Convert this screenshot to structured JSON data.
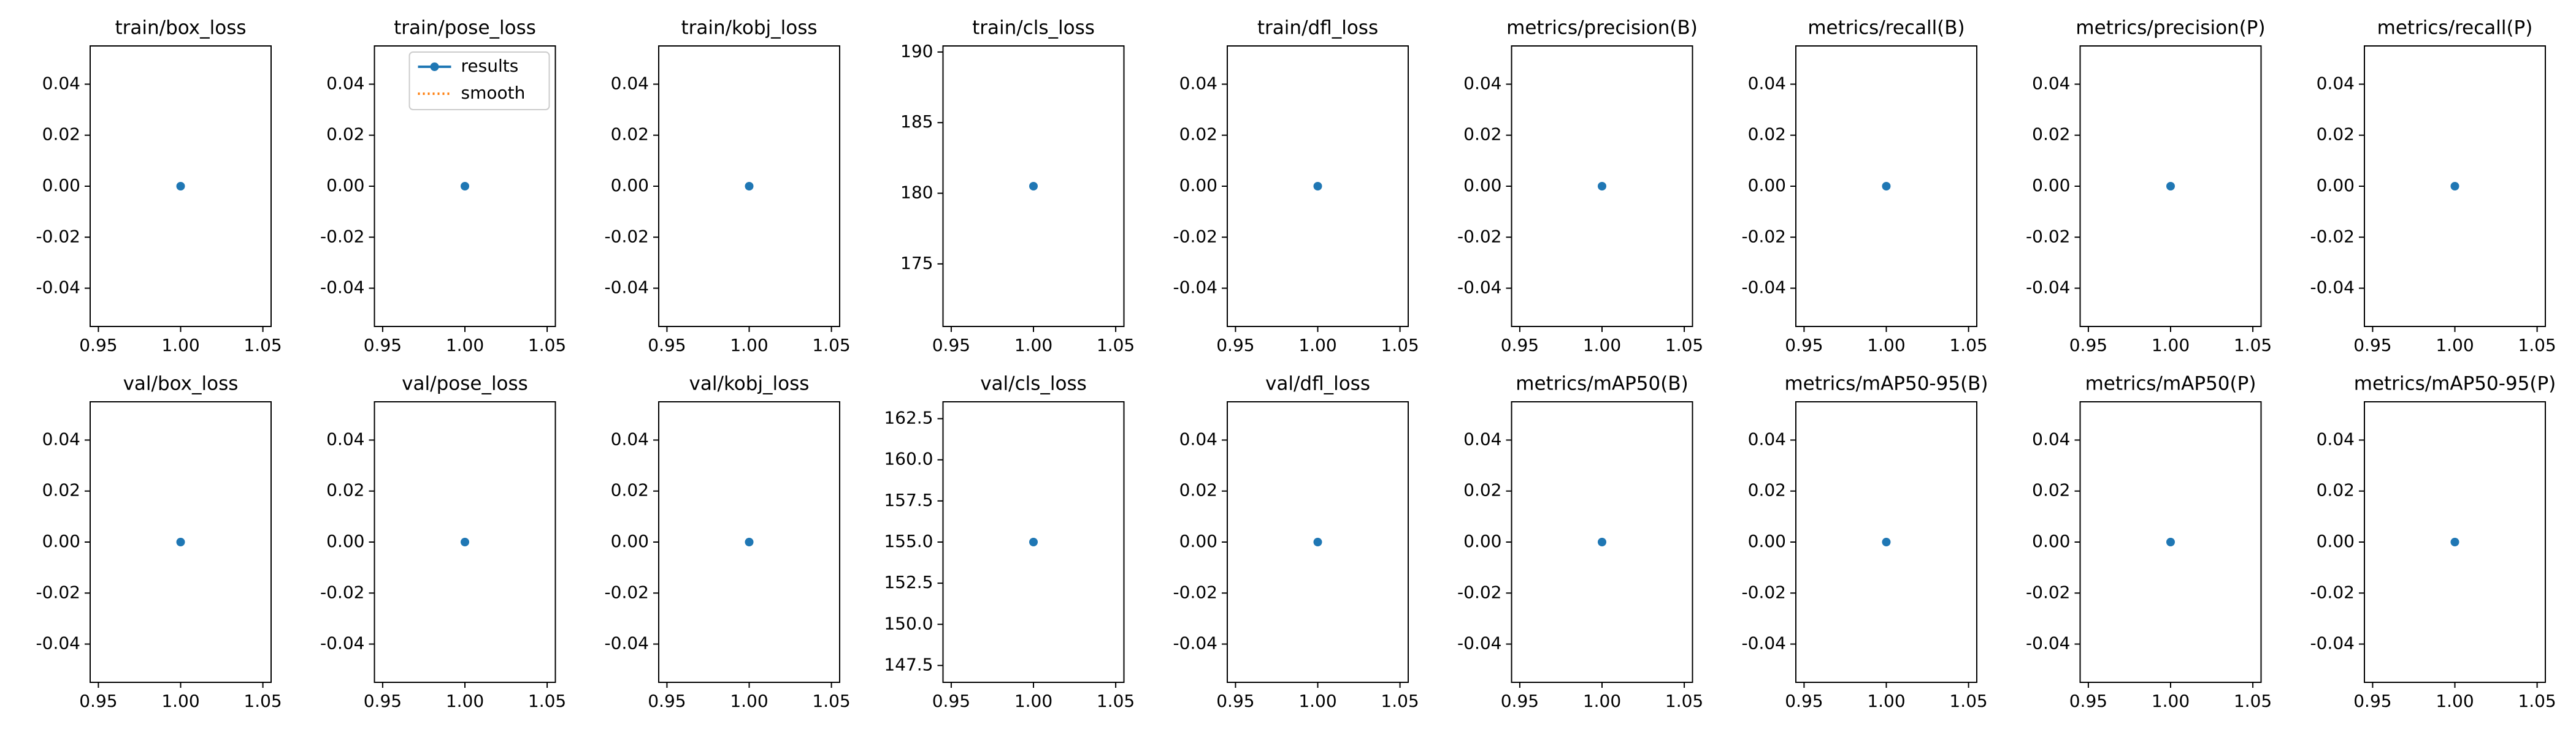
{
  "chart_data": [
    {
      "type": "line",
      "title": "train/box_loss",
      "x": [
        1
      ],
      "series": [
        {
          "name": "results",
          "color": "#1f77b4",
          "values": [
            0
          ]
        }
      ],
      "xlim": [
        0.945,
        1.055
      ],
      "xticks": [
        {
          "value": 0.95,
          "label": "0.95"
        },
        {
          "value": 1,
          "label": "1.00"
        },
        {
          "value": 1.05,
          "label": "1.05"
        }
      ],
      "ylim": [
        -0.055,
        0.055
      ],
      "yticks": [
        -0.04,
        -0.02,
        {
          "value": 0,
          "label": "0.00"
        },
        0.02,
        0.04
      ]
    },
    {
      "type": "line",
      "title": "train/pose_loss",
      "x": [
        1
      ],
      "series": [
        {
          "name": "results",
          "color": "#1f77b4",
          "values": [
            0
          ]
        },
        {
          "name": "smooth",
          "color": "#ff7f0e",
          "values": [
            null
          ]
        }
      ],
      "legend": "upper right",
      "xlim": [
        0.945,
        1.055
      ],
      "xticks": [
        {
          "value": 0.95,
          "label": "0.95"
        },
        {
          "value": 1,
          "label": "1.00"
        },
        {
          "value": 1.05,
          "label": "1.05"
        }
      ],
      "ylim": [
        -0.055,
        0.055
      ],
      "yticks": [
        -0.04,
        -0.02,
        {
          "value": 0,
          "label": "0.00"
        },
        0.02,
        0.04
      ]
    },
    {
      "type": "line",
      "title": "train/kobj_loss",
      "x": [
        1
      ],
      "series": [
        {
          "name": "results",
          "color": "#1f77b4",
          "values": [
            0
          ]
        }
      ],
      "xlim": [
        0.945,
        1.055
      ],
      "xticks": [
        {
          "value": 0.95,
          "label": "0.95"
        },
        {
          "value": 1,
          "label": "1.00"
        },
        {
          "value": 1.05,
          "label": "1.05"
        }
      ],
      "ylim": [
        -0.055,
        0.055
      ],
      "yticks": [
        -0.04,
        -0.02,
        {
          "value": 0,
          "label": "0.00"
        },
        0.02,
        0.04
      ]
    },
    {
      "type": "line",
      "title": "train/cls_loss",
      "x": [
        1
      ],
      "series": [
        {
          "name": "results",
          "color": "#1f77b4",
          "values": [
            180.5
          ]
        }
      ],
      "xlim": [
        0.945,
        1.055
      ],
      "xticks": [
        {
          "value": 0.95,
          "label": "0.95"
        },
        {
          "value": 1,
          "label": "1.00"
        },
        {
          "value": 1.05,
          "label": "1.05"
        }
      ],
      "ylim": [
        170.57,
        190.43
      ],
      "yticks": [
        175,
        180,
        185,
        190
      ]
    },
    {
      "type": "line",
      "title": "train/dfl_loss",
      "x": [
        1
      ],
      "series": [
        {
          "name": "results",
          "color": "#1f77b4",
          "values": [
            0
          ]
        }
      ],
      "xlim": [
        0.945,
        1.055
      ],
      "xticks": [
        {
          "value": 0.95,
          "label": "0.95"
        },
        {
          "value": 1,
          "label": "1.00"
        },
        {
          "value": 1.05,
          "label": "1.05"
        }
      ],
      "ylim": [
        -0.055,
        0.055
      ],
      "yticks": [
        -0.04,
        -0.02,
        {
          "value": 0,
          "label": "0.00"
        },
        0.02,
        0.04
      ]
    },
    {
      "type": "line",
      "title": "metrics/precision(B)",
      "x": [
        1
      ],
      "series": [
        {
          "name": "results",
          "color": "#1f77b4",
          "values": [
            0
          ]
        }
      ],
      "xlim": [
        0.945,
        1.055
      ],
      "xticks": [
        {
          "value": 0.95,
          "label": "0.95"
        },
        {
          "value": 1,
          "label": "1.00"
        },
        {
          "value": 1.05,
          "label": "1.05"
        }
      ],
      "ylim": [
        -0.055,
        0.055
      ],
      "yticks": [
        -0.04,
        -0.02,
        {
          "value": 0,
          "label": "0.00"
        },
        0.02,
        0.04
      ]
    },
    {
      "type": "line",
      "title": "metrics/recall(B)",
      "x": [
        1
      ],
      "series": [
        {
          "name": "results",
          "color": "#1f77b4",
          "values": [
            0
          ]
        }
      ],
      "xlim": [
        0.945,
        1.055
      ],
      "xticks": [
        {
          "value": 0.95,
          "label": "0.95"
        },
        {
          "value": 1,
          "label": "1.00"
        },
        {
          "value": 1.05,
          "label": "1.05"
        }
      ],
      "ylim": [
        -0.055,
        0.055
      ],
      "yticks": [
        -0.04,
        -0.02,
        {
          "value": 0,
          "label": "0.00"
        },
        0.02,
        0.04
      ]
    },
    {
      "type": "line",
      "title": "metrics/precision(P)",
      "x": [
        1
      ],
      "series": [
        {
          "name": "results",
          "color": "#1f77b4",
          "values": [
            0
          ]
        }
      ],
      "xlim": [
        0.945,
        1.055
      ],
      "xticks": [
        {
          "value": 0.95,
          "label": "0.95"
        },
        {
          "value": 1,
          "label": "1.00"
        },
        {
          "value": 1.05,
          "label": "1.05"
        }
      ],
      "ylim": [
        -0.055,
        0.055
      ],
      "yticks": [
        -0.04,
        -0.02,
        {
          "value": 0,
          "label": "0.00"
        },
        0.02,
        0.04
      ]
    },
    {
      "type": "line",
      "title": "metrics/recall(P)",
      "x": [
        1
      ],
      "series": [
        {
          "name": "results",
          "color": "#1f77b4",
          "values": [
            0
          ]
        }
      ],
      "xlim": [
        0.945,
        1.055
      ],
      "xticks": [
        {
          "value": 0.95,
          "label": "0.95"
        },
        {
          "value": 1,
          "label": "1.00"
        },
        {
          "value": 1.05,
          "label": "1.05"
        }
      ],
      "ylim": [
        -0.055,
        0.055
      ],
      "yticks": [
        -0.04,
        -0.02,
        {
          "value": 0,
          "label": "0.00"
        },
        0.02,
        0.04
      ]
    },
    {
      "type": "line",
      "title": "val/box_loss",
      "x": [
        1
      ],
      "series": [
        {
          "name": "results",
          "color": "#1f77b4",
          "values": [
            0
          ]
        }
      ],
      "xlim": [
        0.945,
        1.055
      ],
      "xticks": [
        {
          "value": 0.95,
          "label": "0.95"
        },
        {
          "value": 1,
          "label": "1.00"
        },
        {
          "value": 1.05,
          "label": "1.05"
        }
      ],
      "ylim": [
        -0.055,
        0.055
      ],
      "yticks": [
        -0.04,
        -0.02,
        {
          "value": 0,
          "label": "0.00"
        },
        0.02,
        0.04
      ]
    },
    {
      "type": "line",
      "title": "val/pose_loss",
      "x": [
        1
      ],
      "series": [
        {
          "name": "results",
          "color": "#1f77b4",
          "values": [
            0
          ]
        }
      ],
      "xlim": [
        0.945,
        1.055
      ],
      "xticks": [
        {
          "value": 0.95,
          "label": "0.95"
        },
        {
          "value": 1,
          "label": "1.00"
        },
        {
          "value": 1.05,
          "label": "1.05"
        }
      ],
      "ylim": [
        -0.055,
        0.055
      ],
      "yticks": [
        -0.04,
        -0.02,
        {
          "value": 0,
          "label": "0.00"
        },
        0.02,
        0.04
      ]
    },
    {
      "type": "line",
      "title": "val/kobj_loss",
      "x": [
        1
      ],
      "series": [
        {
          "name": "results",
          "color": "#1f77b4",
          "values": [
            0
          ]
        }
      ],
      "xlim": [
        0.945,
        1.055
      ],
      "xticks": [
        {
          "value": 0.95,
          "label": "0.95"
        },
        {
          "value": 1,
          "label": "1.00"
        },
        {
          "value": 1.05,
          "label": "1.05"
        }
      ],
      "ylim": [
        -0.055,
        0.055
      ],
      "yticks": [
        -0.04,
        -0.02,
        {
          "value": 0,
          "label": "0.00"
        },
        0.02,
        0.04
      ]
    },
    {
      "type": "line",
      "title": "val/cls_loss",
      "x": [
        1
      ],
      "series": [
        {
          "name": "results",
          "color": "#1f77b4",
          "values": [
            155
          ]
        }
      ],
      "xlim": [
        0.945,
        1.055
      ],
      "xticks": [
        {
          "value": 0.95,
          "label": "0.95"
        },
        {
          "value": 1,
          "label": "1.00"
        },
        {
          "value": 1.05,
          "label": "1.05"
        }
      ],
      "ylim": [
        146.475,
        163.525
      ],
      "yticks": [
        147.5,
        {
          "value": 150,
          "label": "150.0"
        },
        152.5,
        {
          "value": 155,
          "label": "155.0"
        },
        157.5,
        {
          "value": 160,
          "label": "160.0"
        },
        162.5
      ]
    },
    {
      "type": "line",
      "title": "val/dfl_loss",
      "x": [
        1
      ],
      "series": [
        {
          "name": "results",
          "color": "#1f77b4",
          "values": [
            0
          ]
        }
      ],
      "xlim": [
        0.945,
        1.055
      ],
      "xticks": [
        {
          "value": 0.95,
          "label": "0.95"
        },
        {
          "value": 1,
          "label": "1.00"
        },
        {
          "value": 1.05,
          "label": "1.05"
        }
      ],
      "ylim": [
        -0.055,
        0.055
      ],
      "yticks": [
        -0.04,
        -0.02,
        {
          "value": 0,
          "label": "0.00"
        },
        0.02,
        0.04
      ]
    },
    {
      "type": "line",
      "title": "metrics/mAP50(B)",
      "x": [
        1
      ],
      "series": [
        {
          "name": "results",
          "color": "#1f77b4",
          "values": [
            0
          ]
        }
      ],
      "xlim": [
        0.945,
        1.055
      ],
      "xticks": [
        {
          "value": 0.95,
          "label": "0.95"
        },
        {
          "value": 1,
          "label": "1.00"
        },
        {
          "value": 1.05,
          "label": "1.05"
        }
      ],
      "ylim": [
        -0.055,
        0.055
      ],
      "yticks": [
        -0.04,
        -0.02,
        {
          "value": 0,
          "label": "0.00"
        },
        0.02,
        0.04
      ]
    },
    {
      "type": "line",
      "title": "metrics/mAP50-95(B)",
      "x": [
        1
      ],
      "series": [
        {
          "name": "results",
          "color": "#1f77b4",
          "values": [
            0
          ]
        }
      ],
      "xlim": [
        0.945,
        1.055
      ],
      "xticks": [
        {
          "value": 0.95,
          "label": "0.95"
        },
        {
          "value": 1,
          "label": "1.00"
        },
        {
          "value": 1.05,
          "label": "1.05"
        }
      ],
      "ylim": [
        -0.055,
        0.055
      ],
      "yticks": [
        -0.04,
        -0.02,
        {
          "value": 0,
          "label": "0.00"
        },
        0.02,
        0.04
      ]
    },
    {
      "type": "line",
      "title": "metrics/mAP50(P)",
      "x": [
        1
      ],
      "series": [
        {
          "name": "results",
          "color": "#1f77b4",
          "values": [
            0
          ]
        }
      ],
      "xlim": [
        0.945,
        1.055
      ],
      "xticks": [
        {
          "value": 0.95,
          "label": "0.95"
        },
        {
          "value": 1,
          "label": "1.00"
        },
        {
          "value": 1.05,
          "label": "1.05"
        }
      ],
      "ylim": [
        -0.055,
        0.055
      ],
      "yticks": [
        -0.04,
        -0.02,
        {
          "value": 0,
          "label": "0.00"
        },
        0.02,
        0.04
      ]
    },
    {
      "type": "line",
      "title": "metrics/mAP50-95(P)",
      "x": [
        1
      ],
      "series": [
        {
          "name": "results",
          "color": "#1f77b4",
          "values": [
            0
          ]
        }
      ],
      "xlim": [
        0.945,
        1.055
      ],
      "xticks": [
        {
          "value": 0.95,
          "label": "0.95"
        },
        {
          "value": 1,
          "label": "1.00"
        },
        {
          "value": 1.05,
          "label": "1.05"
        }
      ],
      "ylim": [
        -0.055,
        0.055
      ],
      "yticks": [
        -0.04,
        -0.02,
        {
          "value": 0,
          "label": "0.00"
        },
        0.02,
        0.04
      ]
    }
  ]
}
